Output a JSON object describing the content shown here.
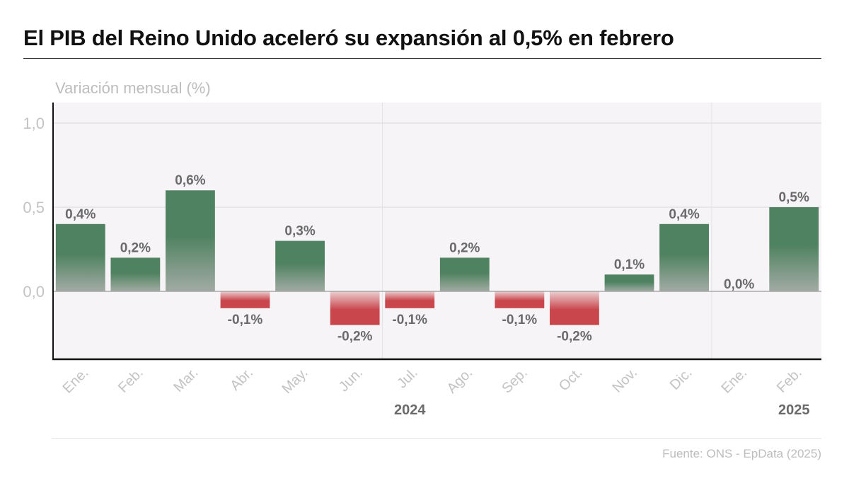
{
  "title": "El PIB del Reino Unido aceleró su expansión al 0,5% en febrero",
  "unit_label": "Variación mensual (%)",
  "source": "Fuente: ONS - EpData (2025)",
  "colors": {
    "positive": "#4f8260",
    "negative": "#c8464c",
    "plot_background": "#f6f4f7",
    "data_label": "#6a6a6a",
    "axis_label": "#c3c3c3"
  },
  "chart_data": {
    "type": "bar",
    "title": "El PIB del Reino Unido aceleró su expansión al 0,5% en febrero",
    "ylabel": "Variación mensual (%)",
    "categories": [
      "Ene.",
      "Feb.",
      "Mar.",
      "Abr.",
      "May.",
      "Jun.",
      "Jul.",
      "Ago.",
      "Sep.",
      "Oct.",
      "Nov.",
      "Dic.",
      "Ene.",
      "Feb."
    ],
    "values": [
      0.4,
      0.2,
      0.6,
      -0.1,
      0.3,
      -0.2,
      -0.1,
      0.2,
      -0.1,
      -0.2,
      0.1,
      0.4,
      0.0,
      0.5
    ],
    "data_labels": [
      "0,4%",
      "0,2%",
      "0,6%",
      "-0,1%",
      "0,3%",
      "-0,2%",
      "-0,1%",
      "0,2%",
      "-0,1%",
      "-0,2%",
      "0,1%",
      "0,4%",
      "0,0%",
      "0,5%"
    ],
    "year_groups": [
      {
        "label": "2024",
        "start": 0,
        "end": 11
      },
      {
        "label": "2025",
        "start": 12,
        "end": 13
      }
    ],
    "y_ticks": [
      {
        "value": 0.0,
        "label": "0,0"
      },
      {
        "value": 0.5,
        "label": "0,5"
      },
      {
        "value": 1.0,
        "label": "1,0"
      }
    ],
    "ylim": [
      -0.4,
      1.12
    ],
    "grid": true,
    "legend": "none"
  }
}
